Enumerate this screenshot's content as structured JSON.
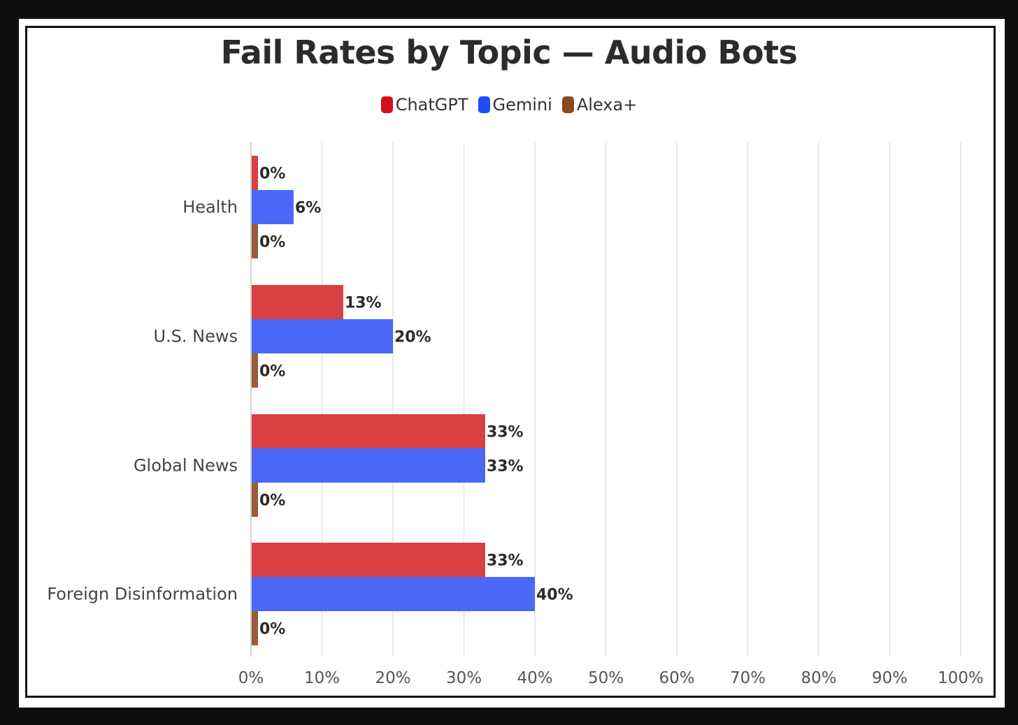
{
  "chart_data": {
    "type": "bar",
    "orientation": "horizontal",
    "title": "Fail Rates by Topic — Audio Bots",
    "categories": [
      "Health",
      "U.S. News",
      "Global News",
      "Foreign Disinformation"
    ],
    "series": [
      {
        "name": "ChatGPT",
        "color": "#d94043",
        "values": [
          0,
          13,
          33,
          33
        ]
      },
      {
        "name": "Gemini",
        "color": "#4a68f5",
        "values": [
          6,
          20,
          33,
          40
        ]
      },
      {
        "name": "Alexa+",
        "color": "#9a5c3a",
        "values": [
          0,
          0,
          0,
          0
        ]
      }
    ],
    "value_labels": [
      [
        "0%",
        "13%",
        "33%",
        "33%"
      ],
      [
        "6%",
        "20%",
        "33%",
        "40%"
      ],
      [
        "0%",
        "0%",
        "0%",
        "0%"
      ]
    ],
    "xlim": [
      0,
      100
    ],
    "xticks": [
      "0%",
      "10%",
      "20%",
      "30%",
      "40%",
      "50%",
      "60%",
      "70%",
      "80%",
      "90%",
      "100%"
    ],
    "xlabel": "",
    "ylabel": "",
    "grid": true,
    "legend_position": "top-center"
  },
  "legend_colors": {
    "ChatGPT": "#d40f1a",
    "Gemini": "#1f4bf2",
    "Alexa+": "#8a4a1d"
  }
}
